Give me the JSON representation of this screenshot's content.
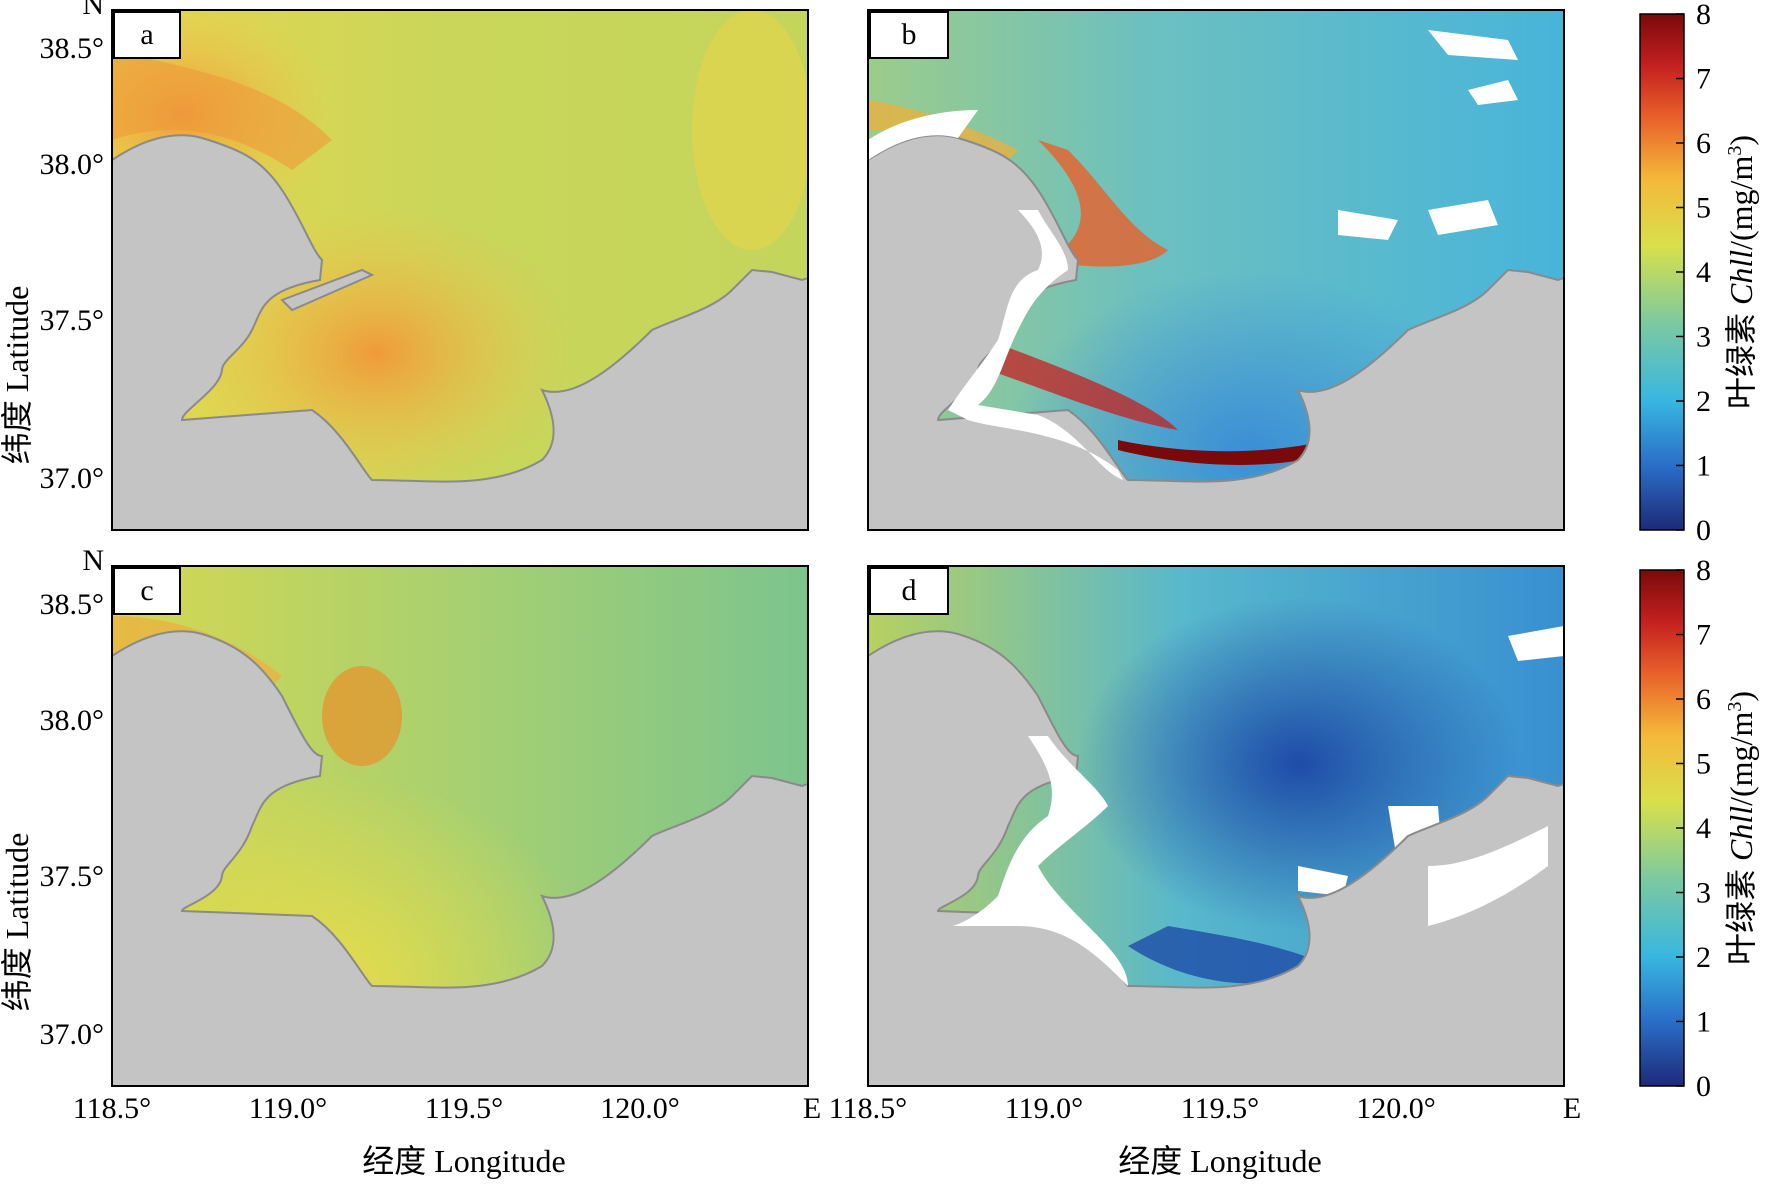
{
  "panels": [
    {
      "label": "a"
    },
    {
      "label": "b"
    },
    {
      "label": "c"
    },
    {
      "label": "d"
    }
  ],
  "axes": {
    "lat_ticks": [
      "38.5°",
      "38.0°",
      "37.5°",
      "37.0°"
    ],
    "lon_ticks": [
      "118.5°",
      "119.0°",
      "119.5°",
      "120.0°"
    ],
    "north_letter": "N",
    "east_letter": "E",
    "ylabel": "纬度 Latitude",
    "xlabel": "经度 Longitude"
  },
  "colorbar": {
    "label_prefix": "叶绿素 ",
    "label_italic": "Chll",
    "label_unit": "/(mg/m",
    "label_sup": "3",
    "label_close": ")",
    "ticks": [
      "0",
      "1",
      "2",
      "3",
      "4",
      "5",
      "6",
      "7",
      "8"
    ],
    "range": [
      0,
      8
    ],
    "colors": [
      "#1e2a78",
      "#2a6ec8",
      "#38b6e0",
      "#7cc9a0",
      "#d8e04a",
      "#f5b83a",
      "#e8602a",
      "#c42020",
      "#7a0a0a"
    ]
  },
  "map_colors": {
    "land": "#c4c4c4",
    "nodata": "#ffffff",
    "coastline": "#8a8a8a"
  }
}
